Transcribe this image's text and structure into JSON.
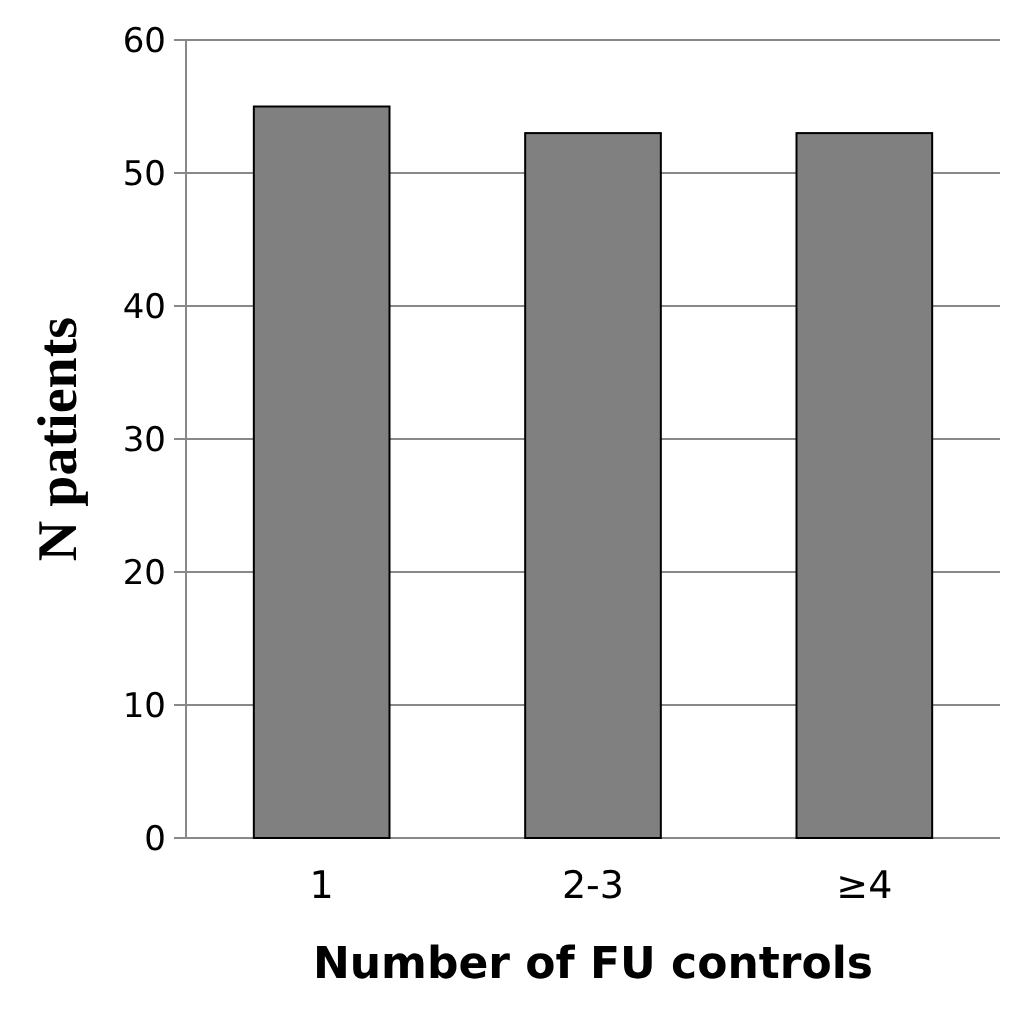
{
  "chart_data": {
    "type": "bar",
    "xlabel": "Number of FU controls",
    "ylabel": "N patients",
    "categories": [
      "1",
      "2-3",
      "≥4"
    ],
    "values": [
      55,
      53,
      53
    ],
    "color": "#808080",
    "ylim": [
      0,
      60
    ],
    "yticks": [
      0,
      10,
      20,
      30,
      40,
      50,
      60
    ],
    "grid": "y"
  }
}
